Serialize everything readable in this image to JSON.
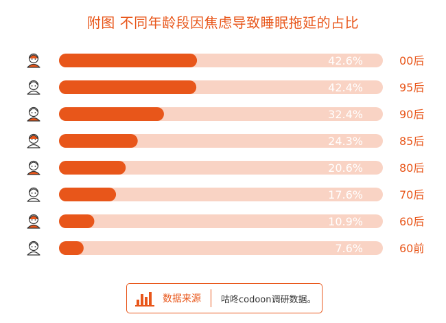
{
  "chart_data": {
    "type": "bar",
    "orientation": "horizontal",
    "title": "附图  不同年龄段因焦虑导致睡眠拖延的占比",
    "categories": [
      "00后",
      "95后",
      "90后",
      "85后",
      "80后",
      "70后",
      "60后",
      "60前"
    ],
    "values": [
      42.6,
      42.4,
      32.4,
      24.3,
      20.6,
      17.6,
      10.9,
      7.6
    ],
    "value_labels": [
      "42.6%",
      "42.4%",
      "32.4%",
      "24.3%",
      "20.6%",
      "17.6%",
      "10.9%",
      "7.6%"
    ],
    "xlim": [
      0,
      100
    ],
    "grid": false,
    "legend": "none"
  },
  "footer": {
    "source_label": "数据来源",
    "source_text": "咕咚codoon调研数据。"
  },
  "colors": {
    "accent": "#e8561a",
    "track": "#f9d3c4",
    "label": "#e8561a",
    "value_text": "#ffffff"
  },
  "icons": [
    "person-avatar-icon",
    "bar-chart-icon"
  ]
}
